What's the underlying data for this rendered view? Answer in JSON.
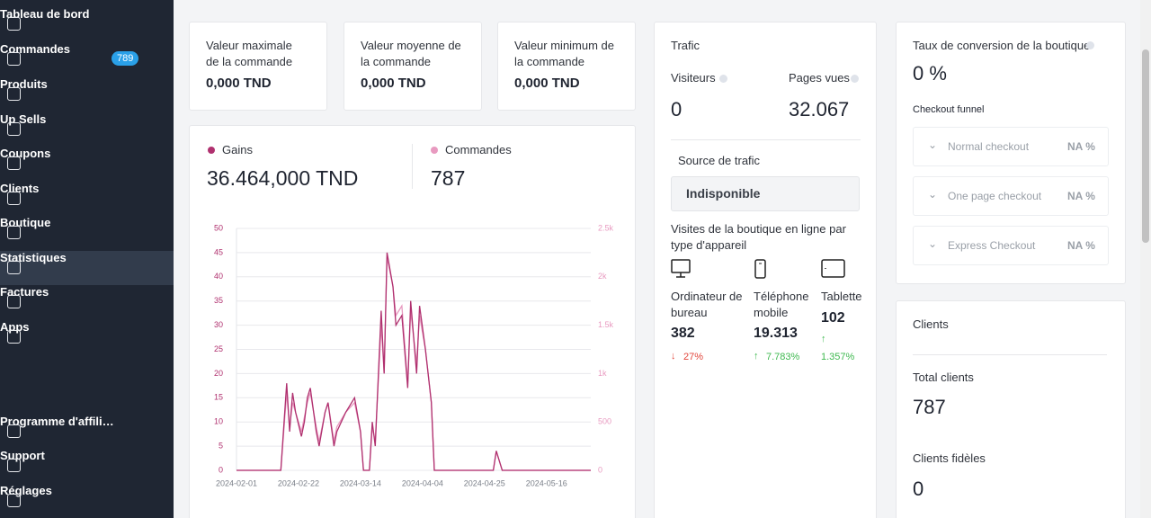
{
  "sidebar": {
    "items": [
      {
        "label": "Tableau de bord"
      },
      {
        "label": "Commandes",
        "badge": 789
      },
      {
        "label": "Produits"
      },
      {
        "label": "Up Sells"
      },
      {
        "label": "Coupons"
      },
      {
        "label": "Clients"
      },
      {
        "label": "Boutique"
      },
      {
        "label": "Statistiques"
      },
      {
        "label": "Factures"
      },
      {
        "label": "Apps"
      },
      {
        "label": "Programme d'affili…"
      },
      {
        "label": "Support"
      },
      {
        "label": "Réglages"
      }
    ]
  },
  "order_cards": [
    {
      "label": "Valeur maximale de la commande",
      "value": "0,000 TND"
    },
    {
      "label": "Valeur moyenne de la commande",
      "value": "0,000 TND"
    },
    {
      "label": "Valeur minimum de la commande",
      "value": "0,000 TND"
    }
  ],
  "chart_summary": {
    "gains_label": "Gains",
    "gains_value": "36.464,000 TND",
    "orders_label": "Commandes",
    "orders_value": "787"
  },
  "chart_data": {
    "type": "line",
    "x": [
      "2024-02-01",
      "2024-02-16",
      "2024-02-18",
      "2024-02-19",
      "2024-02-20",
      "2024-02-21",
      "2024-02-23",
      "2024-02-24",
      "2024-02-25",
      "2024-02-26",
      "2024-02-28",
      "2024-02-29",
      "2024-03-02",
      "2024-03-03",
      "2024-03-05",
      "2024-03-06",
      "2024-03-09",
      "2024-03-12",
      "2024-03-14",
      "2024-03-15",
      "2024-03-17",
      "2024-03-18",
      "2024-03-19",
      "2024-03-21",
      "2024-03-22",
      "2024-03-23",
      "2024-03-25",
      "2024-03-26",
      "2024-03-28",
      "2024-03-30",
      "2024-03-31",
      "2024-04-02",
      "2024-04-03",
      "2024-04-05",
      "2024-04-07",
      "2024-04-08",
      "2024-04-28",
      "2024-04-29",
      "2024-05-01",
      "2024-05-31"
    ],
    "series": [
      {
        "name": "Gains",
        "color": "#b0316f",
        "values": [
          0,
          0,
          18,
          8,
          16,
          12,
          7,
          10,
          15,
          17,
          8,
          5,
          12,
          14,
          5,
          8,
          12,
          15,
          8,
          0,
          0,
          10,
          5,
          33,
          20,
          45,
          38,
          30,
          32,
          17,
          35,
          20,
          34,
          25,
          14,
          0,
          0,
          4,
          0,
          0
        ]
      },
      {
        "name": "Commandes",
        "color": "#e89ac0",
        "axis": "y2",
        "values": [
          0,
          0,
          800,
          450,
          700,
          600,
          400,
          550,
          700,
          800,
          450,
          300,
          600,
          700,
          300,
          450,
          600,
          700,
          400,
          0,
          0,
          450,
          300,
          1500,
          1000,
          2200,
          1900,
          1600,
          1700,
          900,
          1650,
          1100,
          1600,
          1250,
          700,
          0,
          0,
          200,
          0,
          0
        ]
      }
    ],
    "xlim": [
      "2024-02-01",
      "2024-05-31"
    ],
    "xticks": [
      "2024-02-01",
      "2024-02-22",
      "2024-03-14",
      "2024-04-04",
      "2024-04-25",
      "2024-05-16"
    ],
    "ylim": [
      0,
      50
    ],
    "yticks": [
      0,
      5,
      10,
      15,
      20,
      25,
      30,
      35,
      40,
      45,
      50
    ],
    "y2lim": [
      0,
      2500
    ],
    "y2ticks": [
      0,
      500,
      {
        "value": 1000,
        "label": "1k"
      },
      {
        "value": 1500,
        "label": "1.5k"
      },
      {
        "value": 2000,
        "label": "2k"
      },
      {
        "value": 2500,
        "label": "2.5k"
      }
    ],
    "grid": true
  },
  "traffic": {
    "title": "Trafic",
    "visitors_label": "Visiteurs",
    "visitors_value": "0",
    "pages_label": "Pages vues",
    "pages_value": "32.067",
    "source_label": "Source de trafic",
    "source_value": "Indisponible",
    "devices_title": "Visites de la boutique en ligne par type d'appareil",
    "devices": [
      {
        "label": "Ordinateur de bureau",
        "value": "382",
        "change": "27%"
      },
      {
        "label": "Téléphone mobile",
        "value": "19.313",
        "change": "7.783%"
      },
      {
        "label": "Tablette",
        "value": "102",
        "change": "1.357%"
      }
    ]
  },
  "conversion": {
    "title": "Taux de conversion de la boutique",
    "value": "0 %",
    "funnel_title": "Checkout funnel",
    "funnel": [
      {
        "label": "Normal checkout",
        "value": "NA %"
      },
      {
        "label": "One page checkout",
        "value": "NA %"
      },
      {
        "label": "Express Checkout",
        "value": "NA %"
      }
    ]
  },
  "clients": {
    "title": "Clients",
    "total_label": "Total clients",
    "total_value": "787",
    "loyal_label": "Clients fidèles",
    "loyal_value": "0"
  }
}
